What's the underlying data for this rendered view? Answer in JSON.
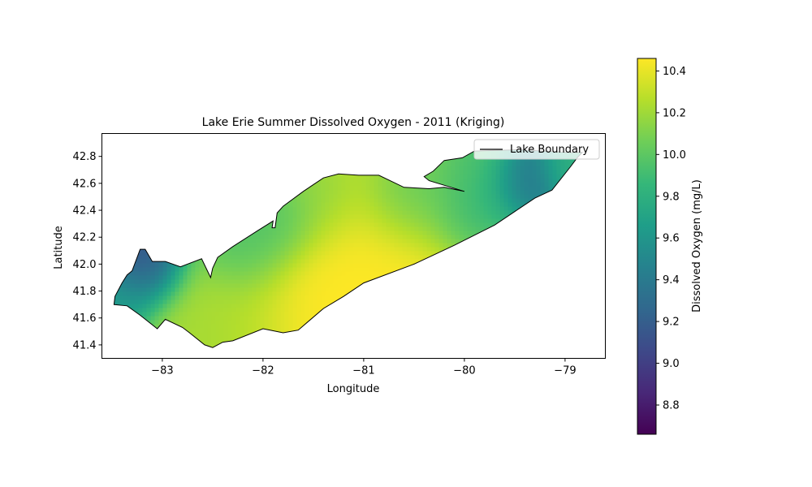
{
  "chart_data": {
    "type": "heatmap",
    "title": "Lake Erie Summer Dissolved Oxygen - 2011 (Kriging)",
    "xlabel": "Longitude",
    "ylabel": "Latitude",
    "xlim": [
      -83.6,
      -78.6
    ],
    "ylim": [
      41.3,
      42.97
    ],
    "xticks": [
      -83,
      -82,
      -81,
      -80,
      -79
    ],
    "xtick_labels": [
      "−83",
      "−82",
      "−81",
      "−80",
      "−79"
    ],
    "yticks": [
      41.4,
      41.6,
      41.8,
      42.0,
      42.2,
      42.4,
      42.6,
      42.8
    ],
    "ytick_labels": [
      "41.4",
      "41.6",
      "41.8",
      "42.0",
      "42.2",
      "42.4",
      "42.6",
      "42.8"
    ],
    "legend": {
      "label": "Lake Boundary",
      "placement": "upper right"
    },
    "colorbar": {
      "label": "Dissolved Oxygen (mg/L)",
      "colormap": "viridis",
      "range": [
        8.66,
        10.46
      ],
      "ticks": [
        8.8,
        9.0,
        9.2,
        9.4,
        9.6,
        9.8,
        10.0,
        10.2,
        10.4
      ],
      "tick_labels": [
        "8.8",
        "9.0",
        "9.2",
        "9.4",
        "9.6",
        "9.8",
        "10.0",
        "10.2",
        "10.4"
      ]
    },
    "grid": false,
    "boundary": [
      [
        -83.48,
        41.7
      ],
      [
        -83.35,
        41.69
      ],
      [
        -83.22,
        41.62
      ],
      [
        -83.05,
        41.52
      ],
      [
        -82.97,
        41.59
      ],
      [
        -82.8,
        41.53
      ],
      [
        -82.73,
        41.49
      ],
      [
        -82.58,
        41.4
      ],
      [
        -82.5,
        41.38
      ],
      [
        -82.4,
        41.42
      ],
      [
        -82.3,
        41.43
      ],
      [
        -82.0,
        41.52
      ],
      [
        -81.8,
        41.49
      ],
      [
        -81.65,
        41.51
      ],
      [
        -81.4,
        41.67
      ],
      [
        -81.2,
        41.76
      ],
      [
        -81.0,
        41.86
      ],
      [
        -80.5,
        42.0
      ],
      [
        -80.1,
        42.14
      ],
      [
        -79.7,
        42.29
      ],
      [
        -79.44,
        42.42
      ],
      [
        -79.3,
        42.49
      ],
      [
        -79.13,
        42.55
      ],
      [
        -78.95,
        42.72
      ],
      [
        -78.88,
        42.79
      ],
      [
        -78.83,
        42.83
      ],
      [
        -78.98,
        42.83
      ],
      [
        -79.46,
        42.85
      ],
      [
        -79.9,
        42.84
      ],
      [
        -80.02,
        42.79
      ],
      [
        -80.2,
        42.77
      ],
      [
        -80.31,
        42.69
      ],
      [
        -80.4,
        42.65
      ],
      [
        -80.35,
        42.62
      ],
      [
        -80.0,
        42.54
      ],
      [
        -80.2,
        42.57
      ],
      [
        -80.35,
        42.56
      ],
      [
        -80.6,
        42.57
      ],
      [
        -80.85,
        42.66
      ],
      [
        -81.05,
        42.66
      ],
      [
        -81.25,
        42.67
      ],
      [
        -81.4,
        42.64
      ],
      [
        -81.6,
        42.54
      ],
      [
        -81.8,
        42.43
      ],
      [
        -81.86,
        42.38
      ],
      [
        -81.88,
        42.27
      ],
      [
        -81.91,
        42.27
      ],
      [
        -81.9,
        42.32
      ],
      [
        -82.05,
        42.25
      ],
      [
        -82.3,
        42.13
      ],
      [
        -82.45,
        42.05
      ],
      [
        -82.5,
        41.97
      ],
      [
        -82.52,
        41.9
      ],
      [
        -82.61,
        42.04
      ],
      [
        -82.82,
        41.98
      ],
      [
        -82.97,
        42.02
      ],
      [
        -83.1,
        42.02
      ],
      [
        -83.17,
        42.11
      ],
      [
        -83.22,
        42.11
      ],
      [
        -83.3,
        41.95
      ],
      [
        -83.35,
        41.92
      ],
      [
        -83.4,
        41.86
      ],
      [
        -83.47,
        41.76
      ]
    ],
    "field_anchors": [
      {
        "lon": -81.0,
        "lat": 41.98,
        "value": 10.46,
        "reach": 1.7
      },
      {
        "lon": -82.55,
        "lat": 41.5,
        "value": 10.2,
        "reach": 0.9
      },
      {
        "lon": -83.2,
        "lat": 42.02,
        "value": 9.05,
        "reach": 0.5
      },
      {
        "lon": -83.45,
        "lat": 41.75,
        "value": 9.65,
        "reach": 0.45
      },
      {
        "lon": -82.2,
        "lat": 42.18,
        "value": 9.85,
        "reach": 0.6
      },
      {
        "lon": -81.85,
        "lat": 42.35,
        "value": 9.85,
        "reach": 0.5
      },
      {
        "lon": -81.45,
        "lat": 42.55,
        "value": 10.05,
        "reach": 0.6
      },
      {
        "lon": -80.55,
        "lat": 42.55,
        "value": 9.9,
        "reach": 0.6
      },
      {
        "lon": -79.9,
        "lat": 42.4,
        "value": 9.75,
        "reach": 0.6
      },
      {
        "lon": -79.9,
        "lat": 42.76,
        "value": 9.9,
        "reach": 0.5
      },
      {
        "lon": -79.4,
        "lat": 42.62,
        "value": 9.3,
        "reach": 0.45
      },
      {
        "lon": -79.0,
        "lat": 42.72,
        "value": 9.8,
        "reach": 0.35
      }
    ]
  }
}
